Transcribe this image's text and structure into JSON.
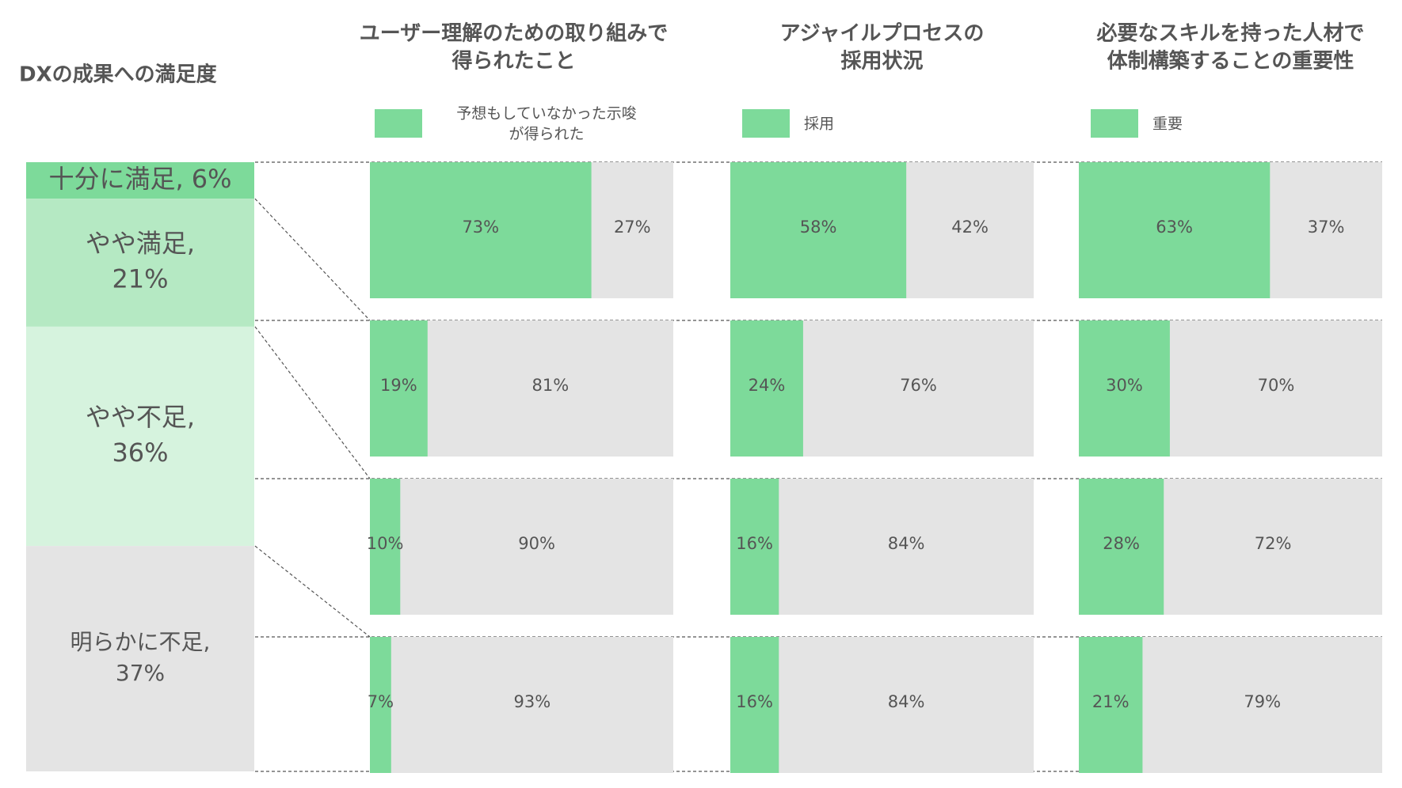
{
  "chart_data": {
    "type": "bar",
    "left_title": "DXの成果への満足度",
    "segments": [
      {
        "label_lines": [
          "十分に満足, 6%"
        ],
        "value": 6,
        "color": "#7dda9a"
      },
      {
        "label_lines": [
          "やや満足,",
          "21%"
        ],
        "value": 21,
        "color": "#b5e9c3"
      },
      {
        "label_lines": [
          "やや不足,",
          "36%"
        ],
        "value": 36,
        "color": "#d6f3de"
      },
      {
        "label_lines": [
          "明らかに不足,",
          "37%"
        ],
        "value": 37,
        "color": "#e4e4e4"
      }
    ],
    "panels": [
      {
        "title_lines": [
          "ユーザー理解のための取り組みで",
          "得られたこと"
        ],
        "legend_lines": [
          "予想もしていなかった示唆",
          "が得られた"
        ],
        "values": [
          73,
          19,
          10,
          7
        ],
        "labels": [
          [
            "73%",
            "27%"
          ],
          [
            "19%",
            "81%"
          ],
          [
            "10%",
            "90%"
          ],
          [
            "7%",
            "93%"
          ]
        ]
      },
      {
        "title_lines": [
          "アジャイルプロセスの",
          "採用状況"
        ],
        "legend_lines": [
          "採用"
        ],
        "values": [
          58,
          24,
          16,
          16
        ],
        "labels": [
          [
            "58%",
            "42%"
          ],
          [
            "24%",
            "76%"
          ],
          [
            "16%",
            "84%"
          ],
          [
            "16%",
            "84%"
          ]
        ]
      },
      {
        "title_lines": [
          "必要なスキルを持った人材で",
          "体制構築することの重要性"
        ],
        "legend_lines": [
          "重要"
        ],
        "values": [
          63,
          30,
          28,
          21
        ],
        "labels": [
          [
            "63%",
            "37%"
          ],
          [
            "30%",
            "70%"
          ],
          [
            "28%",
            "72%"
          ],
          [
            "21%",
            "79%"
          ]
        ]
      }
    ],
    "colors": {
      "highlight": "#7dda9a",
      "rest": "#e4e4e4",
      "text": "#555555",
      "divider": "#555555"
    }
  }
}
